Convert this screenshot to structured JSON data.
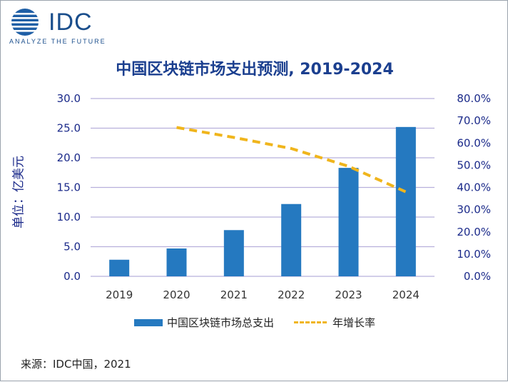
{
  "logo": {
    "brand": "IDC",
    "tagline": "ANALYZE THE FUTURE"
  },
  "colors": {
    "bar": "#2579c0",
    "line": "#f0b51c",
    "grid": "#b8b0dc",
    "title": "#1b3f8f",
    "axis_text": "#1b2a8a"
  },
  "chart_data": {
    "type": "bar",
    "title": "中国区块链市场支出预测, 2019-2024",
    "ylabel": "单位：亿美元",
    "categories": [
      "2019",
      "2020",
      "2021",
      "2022",
      "2023",
      "2024"
    ],
    "series": [
      {
        "name": "中国区块链市场总支出",
        "kind": "bar",
        "axis": "left",
        "values": [
          2.8,
          4.7,
          7.8,
          12.2,
          18.3,
          25.2
        ]
      },
      {
        "name": "年增长率",
        "kind": "line",
        "style": "dashed",
        "axis": "right",
        "values": [
          null,
          0.67,
          0.625,
          0.575,
          0.495,
          0.38
        ]
      }
    ],
    "y_left": {
      "lim": [
        0,
        30
      ],
      "ticks": [
        "0.0",
        "5.0",
        "10.0",
        "15.0",
        "20.0",
        "25.0",
        "30.0"
      ]
    },
    "y_right": {
      "lim": [
        0,
        0.8
      ],
      "ticks": [
        "0.0%",
        "10.0%",
        "20.0%",
        "30.0%",
        "40.0%",
        "50.0%",
        "60.0%",
        "70.0%",
        "80.0%"
      ]
    },
    "grid": true,
    "legend": "bottom"
  },
  "source": "来源：IDC中国，2021"
}
